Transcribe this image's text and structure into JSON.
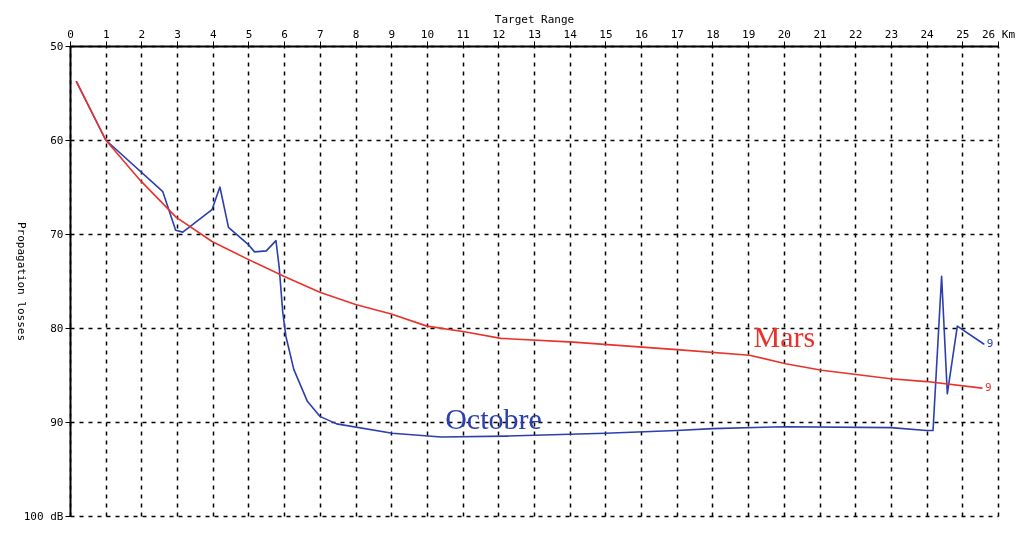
{
  "chart_data": {
    "type": "line",
    "xlabel": "Target Range",
    "ylabel": "Propagation losses",
    "xlim": [
      0,
      26
    ],
    "xticks": [
      0,
      1,
      2,
      3,
      4,
      5,
      6,
      7,
      8,
      9,
      10,
      11,
      12,
      13,
      14,
      15,
      16,
      17,
      18,
      19,
      20,
      21,
      22,
      23,
      24,
      25,
      {
        "value": 26,
        "label": "26 Km"
      }
    ],
    "ylim": [
      100,
      50
    ],
    "yticks": [
      50,
      60,
      70,
      80,
      90,
      {
        "value": 100,
        "label": "100 dB"
      }
    ],
    "grid": true,
    "line_style": "solid",
    "series": [
      {
        "name": "Octobre",
        "color": "#2b3fae",
        "x": [
          0.18,
          1,
          2.6,
          2.96,
          3.16,
          3.98,
          4.2,
          4.44,
          4.99,
          5.17,
          5.5,
          5.77,
          5.86,
          5.96,
          6.05,
          6.27,
          6.65,
          7.0,
          7.47,
          9.03,
          10.4,
          12.24,
          15.0,
          17.0,
          18.0,
          20.05,
          23.0,
          24.0,
          24.18,
          24.42,
          24.58,
          24.86,
          25.6
        ],
        "values": [
          53.8,
          60,
          65.5,
          69.6,
          69.8,
          67.4,
          65.0,
          69.3,
          71.1,
          71.9,
          71.8,
          70.7,
          73.5,
          78.3,
          80.9,
          84.4,
          87.8,
          89.4,
          90.2,
          91.2,
          91.6,
          91.5,
          91.2,
          90.9,
          90.7,
          90.5,
          90.6,
          90.9,
          90.9,
          74.5,
          87.0,
          79.8,
          81.7
        ]
      },
      {
        "name": "Mars",
        "color": "#e8322a",
        "x": [
          0.18,
          1,
          1.97,
          2.97,
          3.98,
          4.99,
          5.99,
          7.0,
          8.0,
          9.0,
          10.0,
          11.05,
          12.07,
          14.1,
          17.0,
          19.04,
          20.05,
          21.06,
          22.99,
          24.0,
          25.55
        ],
        "values": [
          53.8,
          60,
          64.3,
          68.2,
          70.8,
          72.7,
          74.5,
          76.2,
          77.5,
          78.5,
          79.8,
          80.4,
          81.1,
          81.5,
          82.3,
          82.9,
          83.8,
          84.5,
          85.4,
          85.7,
          86.4
        ]
      }
    ],
    "annotations": [
      {
        "text": "9",
        "x": 25.6,
        "y": 81.7
      },
      {
        "text": "9",
        "x": 25.55,
        "y": 86.4
      }
    ]
  }
}
